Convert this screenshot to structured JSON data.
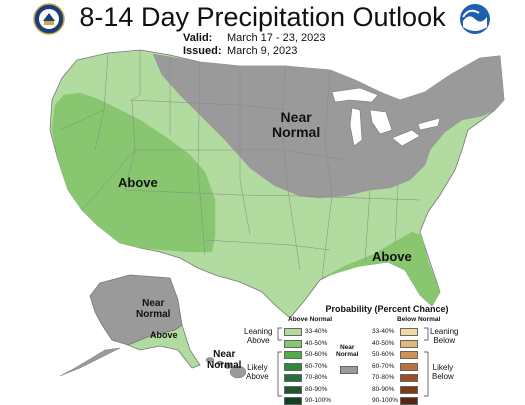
{
  "header": {
    "title": "8-14 Day Precipitation Outlook",
    "valid_label": "Valid:",
    "valid_value": "March 17 - 23, 2023",
    "issued_label": "Issued:",
    "issued_value": "March 9, 2023"
  },
  "map": {
    "labels": {
      "above_west": "Above",
      "above_southeast": "Above",
      "near_normal_north": [
        "Near",
        "Normal"
      ],
      "near_normal_alaska": [
        "Near",
        "Normal"
      ],
      "above_alaska": "Above",
      "near_normal_hawaii": [
        "Near",
        "Normal"
      ]
    },
    "colors": {
      "light_green": "#b2dba0",
      "mid_green": "#88c670",
      "gray": "#9a9a9a",
      "border": "#777777"
    }
  },
  "legend": {
    "title": "Probability (Percent Chance)",
    "above_header": "Above Normal",
    "below_header": "Below Normal",
    "near_header": [
      "Near",
      "Normal"
    ],
    "above_items": [
      {
        "label": "33-40%",
        "color": "#b2dba0"
      },
      {
        "label": "40-50%",
        "color": "#88c670"
      },
      {
        "label": "50-60%",
        "color": "#52ad45"
      },
      {
        "label": "60-70%",
        "color": "#2e8b3a"
      },
      {
        "label": "70-80%",
        "color": "#22703a"
      },
      {
        "label": "80-90%",
        "color": "#1a5a2e"
      },
      {
        "label": "90-100%",
        "color": "#0e4220"
      }
    ],
    "below_items": [
      {
        "label": "33-40%",
        "color": "#f3d9a0"
      },
      {
        "label": "40-50%",
        "color": "#e1b779"
      },
      {
        "label": "50-60%",
        "color": "#cd9356"
      },
      {
        "label": "60-70%",
        "color": "#b8723b"
      },
      {
        "label": "70-80%",
        "color": "#9a5224"
      },
      {
        "label": "80-90%",
        "color": "#7c3a18"
      },
      {
        "label": "90-100%",
        "color": "#5a2410"
      }
    ],
    "near_color": "#9a9a9a",
    "leaning_above": [
      "Leaning",
      "Above"
    ],
    "likely_above": [
      "Likely",
      "Above"
    ],
    "leaning_below": [
      "Leaning",
      "Below"
    ],
    "likely_below": [
      "Likely",
      "Below"
    ]
  }
}
